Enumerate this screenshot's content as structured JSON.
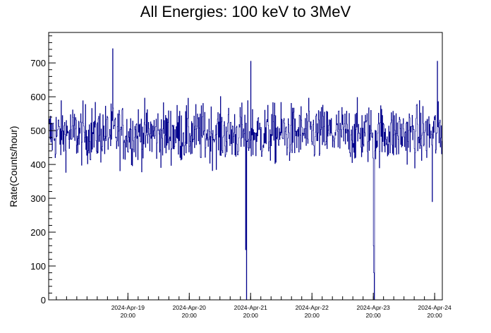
{
  "chart_data": {
    "type": "line",
    "title": "All Energies:  100 keV to 3MeV",
    "xlabel": "",
    "ylabel": "Rate(Counts/hour)",
    "ylim": [
      0,
      790
    ],
    "yticks": [
      0,
      100,
      200,
      300,
      400,
      500,
      600,
      700
    ],
    "ytick_labels": [
      "0",
      "100",
      "200",
      "300",
      "400",
      "500",
      "600",
      "700"
    ],
    "xlim": [
      "2024-Apr-18 13:00",
      "2024-Apr-24 23:00"
    ],
    "xticks": [
      {
        "date": "2024-Apr-19",
        "time": "20:00"
      },
      {
        "date": "2024-Apr-20",
        "time": "20:00"
      },
      {
        "date": "2024-Apr-21",
        "time": "20:00"
      },
      {
        "date": "2024-Apr-22",
        "time": "20:00"
      },
      {
        "date": "2024-Apr-23",
        "time": "20:00"
      },
      {
        "date": "2024-Apr-24",
        "time": "20:00"
      }
    ],
    "series": [
      {
        "color": "#00008b",
        "typical_range": [
          340,
          650
        ],
        "mean": 490,
        "notable_points": [
          {
            "x": "2024-Apr-19 14:00",
            "y": 742
          },
          {
            "x": "2024-Apr-21 18:00",
            "y": 148
          },
          {
            "x": "2024-Apr-21 18:20",
            "y": 0
          },
          {
            "x": "2024-Apr-23 20:00",
            "y": 160
          },
          {
            "x": "2024-Apr-23 20:10",
            "y": 80
          },
          {
            "x": "2024-Apr-23 20:20",
            "y": 0
          },
          {
            "x": "2024-Apr-21 20:00",
            "y": 705
          },
          {
            "x": "2024-Apr-24 19:00",
            "y": 290
          },
          {
            "x": "2024-Apr-24 21:00",
            "y": 705
          }
        ]
      }
    ],
    "grid": false,
    "legend": "none"
  }
}
